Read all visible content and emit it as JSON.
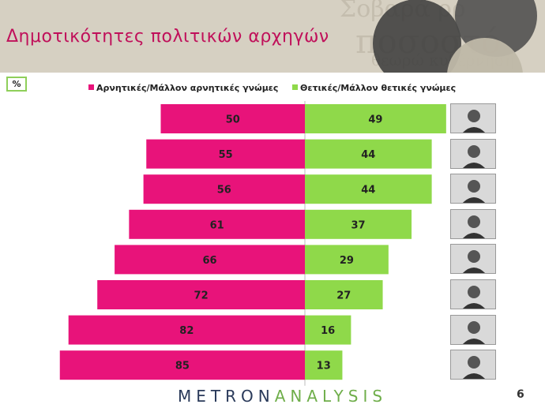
{
  "slide": {
    "title": "Δημοτικότητες πολιτικών αρχηγών",
    "unit_label": "%",
    "page_number": "6",
    "brand": {
      "part1": "METRON",
      "part2": "ANALYSIS"
    },
    "header_bg": "#d6d0c2",
    "title_color": "#c0105a"
  },
  "chart_data": {
    "type": "bar",
    "orientation": "horizontal-diverging",
    "title": "",
    "unit": "%",
    "legend_placement": "top",
    "grid": false,
    "series": [
      {
        "name": "Αρνητικές/Μάλλον αρνητικές γνώμες",
        "color": "#e8137a",
        "direction": "left",
        "values": [
          50,
          55,
          56,
          61,
          66,
          72,
          82,
          85
        ]
      },
      {
        "name": "Θετικές/Μάλλον θετικές γνώμες",
        "color": "#8fd94a",
        "direction": "right",
        "values": [
          49,
          44,
          44,
          37,
          29,
          27,
          16,
          13
        ]
      }
    ],
    "xlim": [
      0,
      100
    ]
  }
}
